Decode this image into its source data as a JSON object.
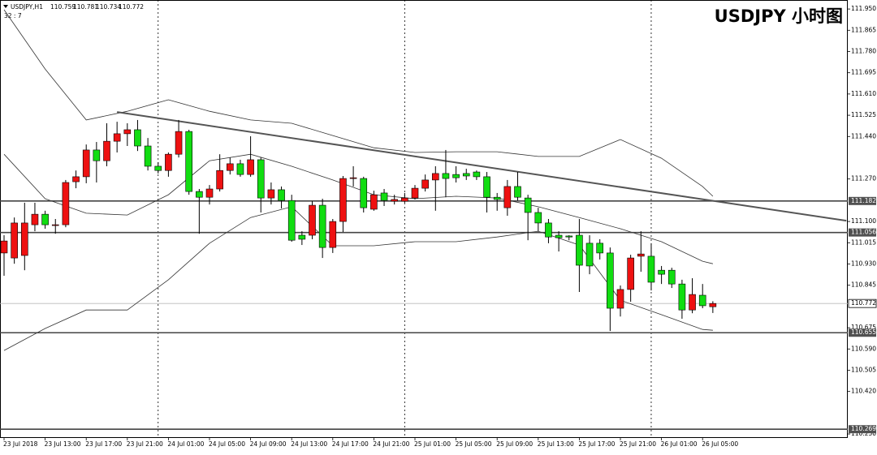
{
  "chart_data": {
    "type": "candlestick",
    "title": "USDJPY 小时图",
    "symbol": "USDJPY,H1",
    "timer": "32 : 7",
    "up_color": "#ee1111",
    "down_color": "#11dd11",
    "categories": [
      "23 Jul 2018",
      null,
      null,
      null,
      "23 Jul 13:00",
      null,
      null,
      null,
      "23 Jul 17:00",
      null,
      null,
      null,
      "23 Jul 21:00",
      null,
      null,
      null,
      "24 Jul 01:00",
      null,
      null,
      null,
      "24 Jul 05:00",
      null,
      null,
      null,
      "24 Jul 09:00",
      null,
      null,
      null,
      "24 Jul 13:00",
      null,
      null,
      null,
      "24 Jul 17:00",
      null,
      null,
      null,
      "24 Jul 21:00",
      null,
      null,
      null,
      "25 Jul 01:00",
      null,
      null,
      null,
      "25 Jul 05:00",
      null,
      null,
      null,
      "25 Jul 09:00",
      null,
      null,
      null,
      "25 Jul 13:00",
      null,
      null,
      null,
      "25 Jul 17:00",
      null,
      null,
      null,
      "25 Jul 21:00",
      null,
      null,
      null,
      "26 Jul 01:00",
      null,
      null,
      null,
      "26 Jul 05:00",
      null
    ],
    "open": [
      110.974,
      110.954,
      110.964,
      111.087,
      111.129,
      111.084,
      111.087,
      111.259,
      111.279,
      111.386,
      111.343,
      111.421,
      111.451,
      111.467,
      111.402,
      111.321,
      111.304,
      111.369,
      111.46,
      111.22,
      111.197,
      111.23,
      111.304,
      111.331,
      111.288,
      111.347,
      111.194,
      111.227,
      111.184,
      111.045,
      111.045,
      111.165,
      110.996,
      111.1,
      111.272,
      111.272,
      111.149,
      111.214,
      111.181,
      111.181,
      111.194,
      111.233,
      111.266,
      111.292,
      111.288,
      111.292,
      111.298,
      111.279,
      111.197,
      111.155,
      111.24,
      111.194,
      111.136,
      111.094,
      111.045,
      111.042,
      111.045,
      111.013,
      111.013,
      110.974,
      110.753,
      110.828,
      110.961,
      110.961,
      110.905,
      110.905,
      110.85,
      110.746,
      110.805,
      110.759
    ],
    "high": [
      111.045,
      111.116,
      111.175,
      111.175,
      111.143,
      111.11,
      111.266,
      111.304,
      111.408,
      111.418,
      111.493,
      111.499,
      111.493,
      111.506,
      111.434,
      111.337,
      111.376,
      111.506,
      111.467,
      111.23,
      111.246,
      111.369,
      111.356,
      111.347,
      111.441,
      111.356,
      111.256,
      111.24,
      111.207,
      111.061,
      111.181,
      111.191,
      111.11,
      111.282,
      111.321,
      111.279,
      111.223,
      111.23,
      111.207,
      111.214,
      111.246,
      111.288,
      111.321,
      111.386,
      111.321,
      111.311,
      111.304,
      111.298,
      111.214,
      111.266,
      111.298,
      111.207,
      111.155,
      111.11,
      111.061,
      111.045,
      111.11,
      111.045,
      111.029,
      110.996,
      110.844,
      110.967,
      111.061,
      111.013,
      110.922,
      110.915,
      110.867,
      110.873,
      110.85,
      110.781
    ],
    "low": [
      110.883,
      110.931,
      110.905,
      111.061,
      111.071,
      111.051,
      111.077,
      111.233,
      111.253,
      111.256,
      111.321,
      111.376,
      111.402,
      111.382,
      111.304,
      111.292,
      111.279,
      111.356,
      111.207,
      111.051,
      111.168,
      111.22,
      111.288,
      111.279,
      111.279,
      111.136,
      111.168,
      111.152,
      111.019,
      111.006,
      111.029,
      110.954,
      110.974,
      111.058,
      111.24,
      111.136,
      111.143,
      111.162,
      111.168,
      111.175,
      111.188,
      111.22,
      111.143,
      111.197,
      111.256,
      111.266,
      111.266,
      111.136,
      111.143,
      111.123,
      111.184,
      111.025,
      111.061,
      111.013,
      110.98,
      111.025,
      110.818,
      110.889,
      110.948,
      110.662,
      110.72,
      110.779,
      110.899,
      110.824,
      110.85,
      110.834,
      110.711,
      110.733,
      110.753,
      110.734
    ],
    "close": [
      111.022,
      111.094,
      111.094,
      111.129,
      111.087,
      111.087,
      111.256,
      111.279,
      111.386,
      111.343,
      111.421,
      111.451,
      111.467,
      111.402,
      111.321,
      111.304,
      111.369,
      111.46,
      111.22,
      111.197,
      111.23,
      111.304,
      111.331,
      111.288,
      111.347,
      111.194,
      111.227,
      111.184,
      111.025,
      111.029,
      111.165,
      110.996,
      111.1,
      111.272,
      111.275,
      111.155,
      111.207,
      111.184,
      111.188,
      111.194,
      111.233,
      111.266,
      111.292,
      111.272,
      111.275,
      111.282,
      111.279,
      111.197,
      111.188,
      111.24,
      111.197,
      111.136,
      111.094,
      111.038,
      111.035,
      111.038,
      110.925,
      110.922,
      110.974,
      110.753,
      110.828,
      110.954,
      110.97,
      110.857,
      110.889,
      110.85,
      110.746,
      110.808,
      110.763,
      110.772
    ],
    "ylim": [
      110.234,
      111.986
    ],
    "yticks": [
      {
        "value": 111.95,
        "label": "111.950"
      },
      111.865,
      {
        "value": 111.78,
        "label": "111.780"
      },
      111.695,
      {
        "value": 111.61,
        "label": "111.610"
      },
      111.525,
      {
        "value": 111.44,
        "label": "111.440"
      },
      {
        "value": 111.27,
        "label": "111.270"
      },
      {
        "value": 111.1,
        "label": "111.100"
      },
      111.015,
      {
        "value": 110.93,
        "label": "110.930"
      },
      110.845,
      110.675,
      {
        "value": 110.59,
        "label": "110.590"
      },
      110.505,
      {
        "value": 110.42,
        "label": "110.420"
      },
      {
        "value": 110.25,
        "label": "110.250"
      }
    ],
    "levels": [
      111.182,
      111.056,
      110.655,
      110.269
    ],
    "bands": {
      "x": [
        0,
        4,
        8,
        12,
        16,
        20,
        24,
        28,
        32,
        36,
        40,
        44,
        48,
        52,
        56,
        60,
        64,
        68,
        69
      ],
      "upper": [
        111.947,
        111.71,
        111.506,
        111.541,
        111.587,
        111.541,
        111.506,
        111.493,
        111.444,
        111.395,
        111.376,
        111.379,
        111.379,
        111.36,
        111.36,
        111.428,
        111.353,
        111.24,
        111.201
      ],
      "middle": [
        111.369,
        111.191,
        111.133,
        111.126,
        111.207,
        111.343,
        111.369,
        111.321,
        111.266,
        111.207,
        111.191,
        111.201,
        111.194,
        111.159,
        111.116,
        111.071,
        111.019,
        110.941,
        110.931
      ],
      "lower": [
        110.584,
        110.672,
        110.746,
        110.746,
        110.867,
        111.013,
        111.116,
        111.159,
        111.003,
        111.003,
        111.019,
        111.019,
        111.038,
        111.061,
        111.006,
        110.785,
        110.727,
        110.668,
        110.665
      ]
    },
    "trendline": {
      "x": [
        11,
        82
      ],
      "y": [
        111.538,
        111.103
      ]
    }
  }
}
